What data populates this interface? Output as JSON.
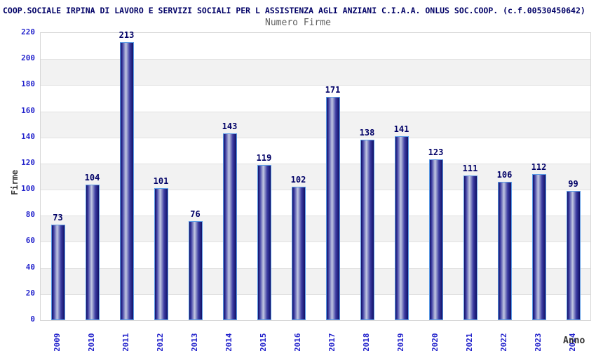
{
  "header": {
    "title": "COOP.SOCIALE IRPINA DI LAVORO E SERVIZI SOCIALI PER L ASSISTENZA AGLI ANZIANI C.I.A.A. ONLUS SOC.COOP. (c.f.00530450642)"
  },
  "chart_data": {
    "type": "bar",
    "title": "Numero Firme",
    "xlabel": "Anno",
    "ylabel": "Firme",
    "categories": [
      "2009",
      "2010",
      "2011",
      "2012",
      "2013",
      "2014",
      "2015",
      "2016",
      "2017",
      "2018",
      "2019",
      "2020",
      "2021",
      "2022",
      "2023",
      "2024"
    ],
    "values": [
      73,
      104,
      213,
      101,
      76,
      143,
      119,
      102,
      171,
      138,
      141,
      123,
      111,
      106,
      112,
      99
    ],
    "ylim": [
      0,
      220
    ],
    "ytick_step": 20,
    "grid": true,
    "legend_position": "none",
    "band_colors": [
      "#ffffff",
      "#f2f2f2"
    ],
    "colors": {
      "title": "#000066",
      "subtitle": "#5e5e5e",
      "axis_tick": "#2424cc",
      "value_label": "#000066",
      "axis_title": "#333333",
      "gridline": "#e2e2e2",
      "plot_border": "#d6d6d6",
      "bar_border": "#5c9ce6",
      "bar_dark": "#101066",
      "bar_mid": "#3c3ca2",
      "bar_light": "#c2c8e2"
    }
  }
}
